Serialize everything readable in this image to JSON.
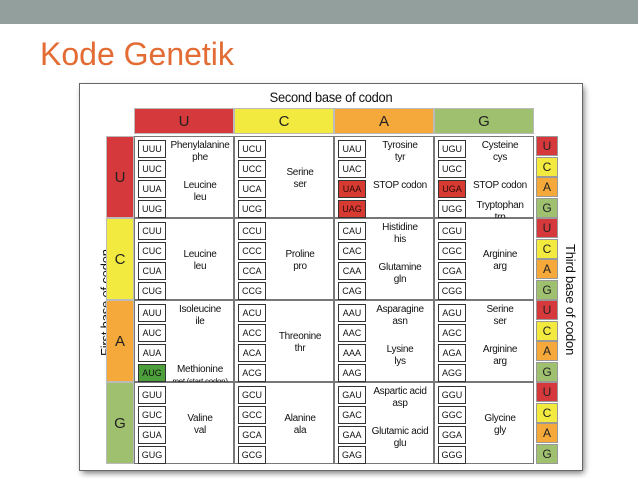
{
  "slide": {
    "title": "Kode Genetik",
    "title_color": "#e36c35",
    "topbar_color": "#939f9d"
  },
  "table": {
    "second_base_label": "Second base of codon",
    "first_base_label": "First base of codon",
    "third_base_label": "Third base of codon",
    "bases": [
      "U",
      "C",
      "A",
      "G"
    ],
    "colors": {
      "U": "#d6393b",
      "C": "#f2ea3f",
      "A": "#f5a93a",
      "G": "#9fc16f"
    },
    "cells": [
      [
        {
          "codons": [
            "UUU",
            "UUC",
            "UUA",
            "UUG"
          ],
          "groups": [
            {
              "slot": 0,
              "name": "Phenylalanine",
              "abbr": "phe"
            },
            {
              "slot": 2,
              "name": "Leucine",
              "abbr": "leu"
            }
          ]
        },
        {
          "codons": [
            "UCU",
            "UCC",
            "UCA",
            "UCG"
          ],
          "groups": [
            {
              "slot": 1,
              "name": "Serine",
              "abbr": "ser"
            }
          ]
        },
        {
          "codons": [
            "UAU",
            "UAC",
            "UAA",
            "UAG"
          ],
          "stop": [
            2,
            3
          ],
          "groups": [
            {
              "slot": 0,
              "name": "Tyrosine",
              "abbr": "tyr"
            },
            {
              "slot": 2,
              "name": "STOP codon",
              "abbr": ""
            }
          ]
        },
        {
          "codons": [
            "UGU",
            "UGC",
            "UGA",
            "UGG"
          ],
          "stop": [
            2
          ],
          "groups": [
            {
              "slot": 0,
              "name": "Cysteine",
              "abbr": "cys"
            },
            {
              "slot": 2,
              "name": "STOP codon",
              "abbr": ""
            },
            {
              "slot": 3,
              "name": "Tryptophan",
              "abbr": "trp"
            }
          ]
        }
      ],
      [
        {
          "codons": [
            "CUU",
            "CUC",
            "CUA",
            "CUG"
          ],
          "groups": [
            {
              "slot": 1,
              "name": "Leucine",
              "abbr": "leu"
            }
          ]
        },
        {
          "codons": [
            "CCU",
            "CCC",
            "CCA",
            "CCG"
          ],
          "groups": [
            {
              "slot": 1,
              "name": "Proline",
              "abbr": "pro"
            }
          ]
        },
        {
          "codons": [
            "CAU",
            "CAC",
            "CAA",
            "CAG"
          ],
          "groups": [
            {
              "slot": 0,
              "name": "Histidine",
              "abbr": "his"
            },
            {
              "slot": 2,
              "name": "Glutamine",
              "abbr": "gln"
            }
          ]
        },
        {
          "codons": [
            "CGU",
            "CGC",
            "CGA",
            "CGG"
          ],
          "groups": [
            {
              "slot": 1,
              "name": "Arginine",
              "abbr": "arg"
            }
          ]
        }
      ],
      [
        {
          "codons": [
            "AUU",
            "AUC",
            "AUA",
            "AUG"
          ],
          "start": [
            3
          ],
          "groups": [
            {
              "slot": 0,
              "name": "Isoleucine",
              "abbr": "ile"
            },
            {
              "slot": 3,
              "name": "Methionine",
              "abbr": "met (start codon)"
            }
          ]
        },
        {
          "codons": [
            "ACU",
            "ACC",
            "ACA",
            "ACG"
          ],
          "groups": [
            {
              "slot": 1,
              "name": "Threonine",
              "abbr": "thr"
            }
          ]
        },
        {
          "codons": [
            "AAU",
            "AAC",
            "AAA",
            "AAG"
          ],
          "groups": [
            {
              "slot": 0,
              "name": "Asparagine",
              "abbr": "asn"
            },
            {
              "slot": 2,
              "name": "Lysine",
              "abbr": "lys"
            }
          ]
        },
        {
          "codons": [
            "AGU",
            "AGC",
            "AGA",
            "AGG"
          ],
          "groups": [
            {
              "slot": 0,
              "name": "Serine",
              "abbr": "ser"
            },
            {
              "slot": 2,
              "name": "Arginine",
              "abbr": "arg"
            }
          ]
        }
      ],
      [
        {
          "codons": [
            "GUU",
            "GUC",
            "GUA",
            "GUG"
          ],
          "groups": [
            {
              "slot": 1,
              "name": "Valine",
              "abbr": "val"
            }
          ]
        },
        {
          "codons": [
            "GCU",
            "GCC",
            "GCA",
            "GCG"
          ],
          "groups": [
            {
              "slot": 1,
              "name": "Alanine",
              "abbr": "ala"
            }
          ]
        },
        {
          "codons": [
            "GAU",
            "GAC",
            "GAA",
            "GAG"
          ],
          "groups": [
            {
              "slot": 0,
              "name": "Aspartic acid",
              "abbr": "asp"
            },
            {
              "slot": 2,
              "name": "Glutamic acid",
              "abbr": "glu"
            }
          ]
        },
        {
          "codons": [
            "GGU",
            "GGC",
            "GGA",
            "GGG"
          ],
          "groups": [
            {
              "slot": 1,
              "name": "Glycine",
              "abbr": "gly"
            }
          ]
        }
      ]
    ]
  }
}
